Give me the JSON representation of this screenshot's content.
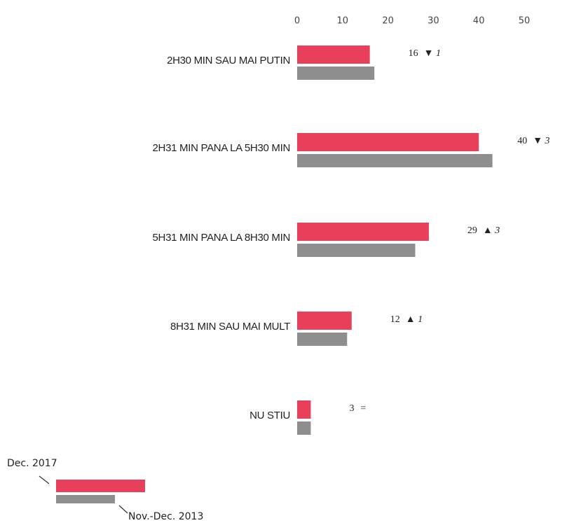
{
  "chart_data": {
    "type": "hbar",
    "categories": [
      "2H30 MIN SAU MAI PUTIN",
      "2H31 MIN PANA LA 5H30 MIN",
      "5H31 MIN PANA LA 8H30 MIN",
      "8H31 MIN SAU  MAI MULT",
      "NU STIU"
    ],
    "series": [
      {
        "name": "Dec. 2017",
        "color": "#e8405a",
        "values": [
          16,
          40,
          29,
          12,
          3
        ]
      },
      {
        "name": "Nov.-Dec. 2013",
        "color": "#8e8e8e",
        "values": [
          17,
          43,
          26,
          11,
          3
        ]
      }
    ],
    "changes": [
      "▼ 1",
      "▼ 3",
      "▲ 3",
      "▲ 1",
      "="
    ],
    "xlim": [
      0,
      50
    ],
    "xticks": [
      0,
      10,
      20,
      30,
      40,
      50
    ]
  }
}
